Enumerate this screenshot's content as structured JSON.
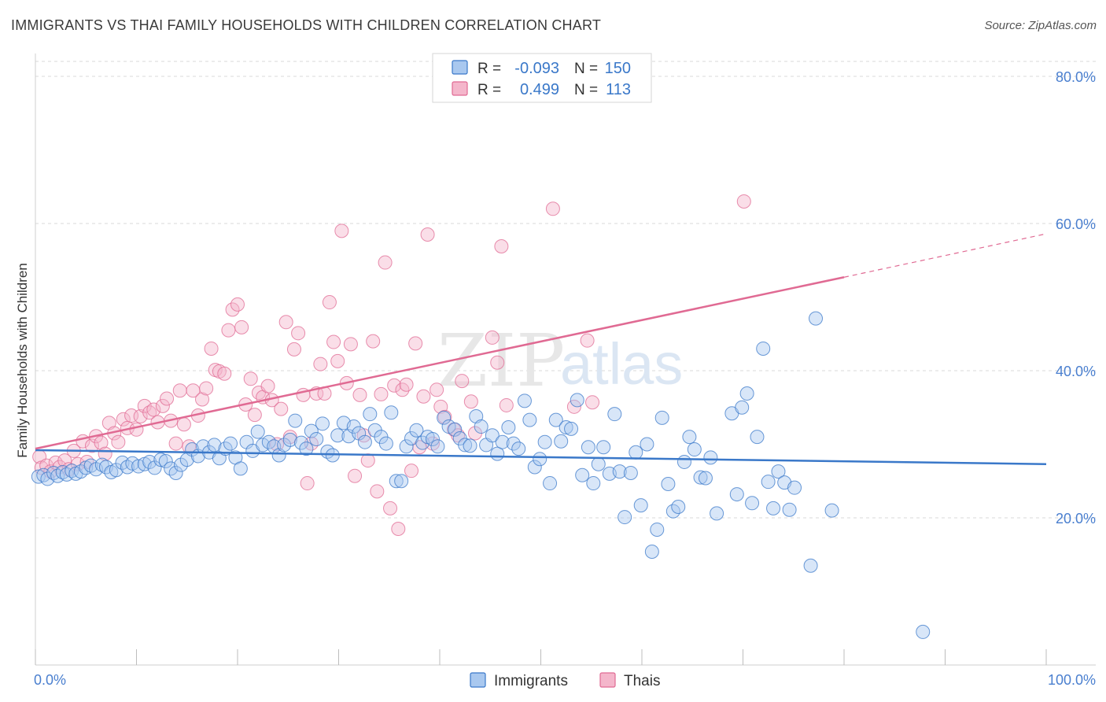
{
  "header": {
    "title": "IMMIGRANTS VS THAI FAMILY HOUSEHOLDS WITH CHILDREN CORRELATION CHART",
    "source": "Source: ZipAtlas.com"
  },
  "watermark": {
    "zip": "ZIP",
    "atlas": "atlas"
  },
  "colors": {
    "blue": "#3a78c9",
    "blue_fill": "#a9c8ef",
    "pink": "#e06a93",
    "pink_fill": "#f4b6cb",
    "axis_label": "#4a7fcf",
    "grid": "#d9d9d9"
  },
  "chart_data": {
    "type": "scatter",
    "title": "IMMIGRANTS VS THAI FAMILY HOUSEHOLDS WITH CHILDREN CORRELATION CHART",
    "xlabel": "",
    "ylabel": "Family Households with Children",
    "xlim": [
      0,
      100
    ],
    "ylim": [
      0,
      80
    ],
    "x_tick_labels": [
      "0.0%",
      "100.0%"
    ],
    "y_ticks": [
      20,
      40,
      60,
      80
    ],
    "y_tick_labels": [
      "20.0%",
      "40.0%",
      "60.0%",
      "80.0%"
    ],
    "grid": "horizontal dashed",
    "legend_position": "bottom-center",
    "stats_box": [
      {
        "r_label": "R =",
        "r": "-0.093",
        "n_label": "N =",
        "n": "150"
      },
      {
        "r_label": "R =",
        "r": "0.499",
        "n_label": "N =",
        "n": "113"
      }
    ],
    "series": [
      {
        "name": "Immigrants",
        "color": "#3a78c9",
        "trend": {
          "x0": 0,
          "y0": 29.2,
          "x1": 100,
          "y1": 27.3
        },
        "points": [
          [
            0.3,
            25.6
          ],
          [
            0.8,
            25.8
          ],
          [
            1.2,
            25.3
          ],
          [
            1.8,
            26.1
          ],
          [
            2.2,
            25.7
          ],
          [
            2.7,
            26.2
          ],
          [
            3.1,
            25.9
          ],
          [
            3.6,
            26.4
          ],
          [
            4.0,
            26.0
          ],
          [
            4.5,
            26.3
          ],
          [
            5.0,
            26.8
          ],
          [
            5.5,
            27.1
          ],
          [
            6.0,
            26.6
          ],
          [
            6.6,
            27.2
          ],
          [
            7.0,
            26.9
          ],
          [
            7.5,
            26.2
          ],
          [
            8.0,
            26.5
          ],
          [
            8.6,
            27.5
          ],
          [
            9.1,
            26.9
          ],
          [
            9.6,
            27.4
          ],
          [
            10.2,
            27.0
          ],
          [
            10.8,
            27.3
          ],
          [
            11.3,
            27.6
          ],
          [
            11.8,
            26.8
          ],
          [
            12.4,
            27.9
          ],
          [
            12.9,
            27.7
          ],
          [
            13.4,
            26.7
          ],
          [
            13.9,
            26.1
          ],
          [
            14.4,
            27.2
          ],
          [
            15.0,
            27.9
          ],
          [
            15.5,
            29.3
          ],
          [
            16.1,
            28.4
          ],
          [
            16.6,
            29.7
          ],
          [
            17.2,
            28.9
          ],
          [
            17.7,
            29.9
          ],
          [
            18.2,
            28.1
          ],
          [
            18.8,
            29.4
          ],
          [
            19.3,
            30.1
          ],
          [
            19.8,
            28.2
          ],
          [
            20.3,
            26.7
          ],
          [
            20.9,
            30.3
          ],
          [
            21.5,
            29.1
          ],
          [
            22.0,
            31.7
          ],
          [
            22.5,
            29.9
          ],
          [
            23.1,
            30.3
          ],
          [
            23.6,
            29.7
          ],
          [
            24.1,
            28.5
          ],
          [
            24.6,
            29.9
          ],
          [
            25.2,
            30.6
          ],
          [
            25.7,
            33.2
          ],
          [
            26.3,
            30.2
          ],
          [
            26.8,
            29.4
          ],
          [
            27.3,
            31.8
          ],
          [
            27.8,
            30.7
          ],
          [
            28.4,
            32.8
          ],
          [
            28.9,
            29.0
          ],
          [
            29.4,
            28.5
          ],
          [
            29.9,
            31.2
          ],
          [
            30.5,
            32.9
          ],
          [
            31.0,
            31.1
          ],
          [
            31.5,
            32.4
          ],
          [
            32.0,
            31.5
          ],
          [
            32.6,
            30.3
          ],
          [
            33.1,
            34.1
          ],
          [
            33.6,
            31.9
          ],
          [
            34.2,
            31.0
          ],
          [
            34.7,
            30.1
          ],
          [
            35.2,
            34.3
          ],
          [
            35.7,
            25.0
          ],
          [
            36.2,
            25.0
          ],
          [
            36.7,
            29.7
          ],
          [
            37.2,
            30.8
          ],
          [
            37.7,
            31.9
          ],
          [
            38.3,
            30.2
          ],
          [
            38.8,
            31.0
          ],
          [
            39.3,
            30.7
          ],
          [
            39.8,
            29.7
          ],
          [
            40.4,
            33.6
          ],
          [
            40.9,
            32.4
          ],
          [
            41.5,
            32.0
          ],
          [
            42.0,
            30.8
          ],
          [
            42.5,
            29.9
          ],
          [
            43.0,
            29.8
          ],
          [
            43.6,
            33.8
          ],
          [
            44.1,
            32.4
          ],
          [
            44.6,
            29.9
          ],
          [
            45.2,
            31.2
          ],
          [
            45.7,
            28.7
          ],
          [
            46.2,
            30.3
          ],
          [
            46.8,
            32.3
          ],
          [
            47.3,
            30.1
          ],
          [
            47.8,
            29.4
          ],
          [
            48.4,
            35.9
          ],
          [
            48.9,
            33.3
          ],
          [
            49.4,
            26.9
          ],
          [
            49.9,
            28.0
          ],
          [
            50.4,
            30.3
          ],
          [
            50.9,
            24.7
          ],
          [
            51.5,
            33.3
          ],
          [
            52.0,
            30.4
          ],
          [
            52.5,
            32.3
          ],
          [
            53.0,
            32.1
          ],
          [
            53.6,
            36.0
          ],
          [
            54.1,
            25.8
          ],
          [
            54.7,
            29.6
          ],
          [
            55.2,
            24.7
          ],
          [
            55.7,
            27.3
          ],
          [
            56.2,
            29.6
          ],
          [
            56.8,
            26.0
          ],
          [
            57.3,
            34.1
          ],
          [
            57.8,
            26.3
          ],
          [
            58.3,
            20.1
          ],
          [
            58.9,
            26.1
          ],
          [
            59.4,
            28.9
          ],
          [
            59.9,
            21.7
          ],
          [
            60.5,
            30.0
          ],
          [
            61.0,
            15.4
          ],
          [
            61.5,
            18.4
          ],
          [
            62.0,
            33.6
          ],
          [
            62.6,
            24.6
          ],
          [
            63.1,
            20.9
          ],
          [
            63.6,
            21.5
          ],
          [
            64.2,
            27.6
          ],
          [
            64.7,
            31.0
          ],
          [
            65.2,
            29.3
          ],
          [
            65.8,
            25.5
          ],
          [
            66.3,
            25.4
          ],
          [
            66.8,
            28.2
          ],
          [
            67.4,
            20.6
          ],
          [
            68.9,
            34.2
          ],
          [
            69.4,
            23.2
          ],
          [
            69.9,
            35.0
          ],
          [
            70.4,
            36.9
          ],
          [
            70.9,
            22.0
          ],
          [
            71.4,
            31.0
          ],
          [
            72.0,
            43.0
          ],
          [
            72.5,
            24.9
          ],
          [
            73.0,
            21.3
          ],
          [
            73.5,
            26.3
          ],
          [
            74.1,
            24.8
          ],
          [
            74.6,
            21.1
          ],
          [
            75.1,
            24.1
          ],
          [
            76.7,
            13.5
          ],
          [
            77.2,
            47.1
          ],
          [
            78.8,
            21.0
          ],
          [
            87.8,
            4.5
          ]
        ]
      },
      {
        "name": "Thais",
        "color": "#e06a93",
        "trend": {
          "x0": 0,
          "y0": 29.4,
          "x1": 80,
          "y1": 52.7
        },
        "trend_dashed_to": {
          "x": 100,
          "y": 58.6
        },
        "points": [
          [
            0.4,
            28.3
          ],
          [
            0.6,
            26.8
          ],
          [
            1.1,
            27.1
          ],
          [
            1.5,
            26.3
          ],
          [
            2.0,
            27.5
          ],
          [
            2.4,
            26.9
          ],
          [
            2.9,
            27.8
          ],
          [
            3.3,
            26.6
          ],
          [
            3.8,
            29.1
          ],
          [
            4.2,
            27.3
          ],
          [
            4.7,
            30.4
          ],
          [
            5.1,
            27.6
          ],
          [
            5.6,
            29.8
          ],
          [
            6.0,
            31.1
          ],
          [
            6.5,
            30.2
          ],
          [
            6.9,
            28.7
          ],
          [
            7.3,
            32.9
          ],
          [
            7.8,
            31.5
          ],
          [
            8.2,
            30.3
          ],
          [
            8.7,
            33.4
          ],
          [
            9.1,
            32.2
          ],
          [
            9.5,
            33.9
          ],
          [
            10.0,
            32.0
          ],
          [
            10.4,
            33.8
          ],
          [
            10.8,
            35.2
          ],
          [
            11.3,
            34.3
          ],
          [
            11.7,
            34.7
          ],
          [
            12.1,
            33.0
          ],
          [
            12.6,
            35.2
          ],
          [
            13.0,
            36.2
          ],
          [
            13.4,
            33.2
          ],
          [
            13.9,
            30.1
          ],
          [
            14.3,
            37.3
          ],
          [
            14.7,
            32.7
          ],
          [
            15.2,
            29.7
          ],
          [
            15.6,
            37.3
          ],
          [
            16.1,
            33.9
          ],
          [
            16.5,
            36.1
          ],
          [
            16.9,
            37.6
          ],
          [
            17.4,
            43.0
          ],
          [
            17.8,
            40.1
          ],
          [
            18.2,
            39.9
          ],
          [
            18.7,
            39.6
          ],
          [
            19.1,
            45.5
          ],
          [
            19.5,
            48.3
          ],
          [
            20.0,
            49.0
          ],
          [
            20.4,
            45.9
          ],
          [
            20.8,
            35.4
          ],
          [
            21.3,
            38.9
          ],
          [
            21.7,
            34.0
          ],
          [
            22.1,
            37.0
          ],
          [
            22.5,
            36.4
          ],
          [
            23.0,
            37.9
          ],
          [
            23.4,
            36.0
          ],
          [
            23.9,
            30.0
          ],
          [
            24.3,
            34.8
          ],
          [
            24.8,
            46.6
          ],
          [
            25.2,
            31.0
          ],
          [
            25.6,
            42.9
          ],
          [
            26.0,
            45.1
          ],
          [
            26.5,
            36.7
          ],
          [
            26.9,
            24.7
          ],
          [
            27.3,
            30.1
          ],
          [
            27.8,
            36.9
          ],
          [
            28.2,
            40.9
          ],
          [
            28.6,
            36.9
          ],
          [
            29.1,
            49.3
          ],
          [
            29.5,
            43.9
          ],
          [
            29.9,
            41.3
          ],
          [
            30.3,
            59.0
          ],
          [
            30.8,
            38.3
          ],
          [
            31.2,
            43.6
          ],
          [
            31.6,
            25.7
          ],
          [
            32.1,
            36.7
          ],
          [
            32.5,
            31.2
          ],
          [
            32.9,
            27.8
          ],
          [
            33.4,
            44.0
          ],
          [
            33.8,
            23.6
          ],
          [
            34.2,
            36.8
          ],
          [
            34.6,
            54.7
          ],
          [
            35.1,
            21.3
          ],
          [
            35.5,
            38.0
          ],
          [
            35.9,
            18.5
          ],
          [
            36.3,
            37.4
          ],
          [
            36.7,
            38.1
          ],
          [
            37.2,
            26.4
          ],
          [
            37.6,
            43.7
          ],
          [
            38.0,
            29.6
          ],
          [
            38.4,
            36.5
          ],
          [
            38.8,
            58.5
          ],
          [
            39.3,
            30.1
          ],
          [
            39.7,
            37.4
          ],
          [
            40.1,
            35.1
          ],
          [
            40.5,
            33.7
          ],
          [
            41.4,
            32.0
          ],
          [
            41.8,
            31.2
          ],
          [
            42.2,
            38.6
          ],
          [
            43.1,
            35.8
          ],
          [
            43.5,
            31.5
          ],
          [
            45.2,
            44.5
          ],
          [
            45.7,
            41.1
          ],
          [
            46.1,
            56.9
          ],
          [
            46.6,
            35.3
          ],
          [
            51.2,
            62.0
          ],
          [
            53.3,
            35.1
          ],
          [
            54.6,
            44.1
          ],
          [
            55.1,
            35.7
          ],
          [
            70.1,
            63.0
          ]
        ]
      }
    ]
  }
}
